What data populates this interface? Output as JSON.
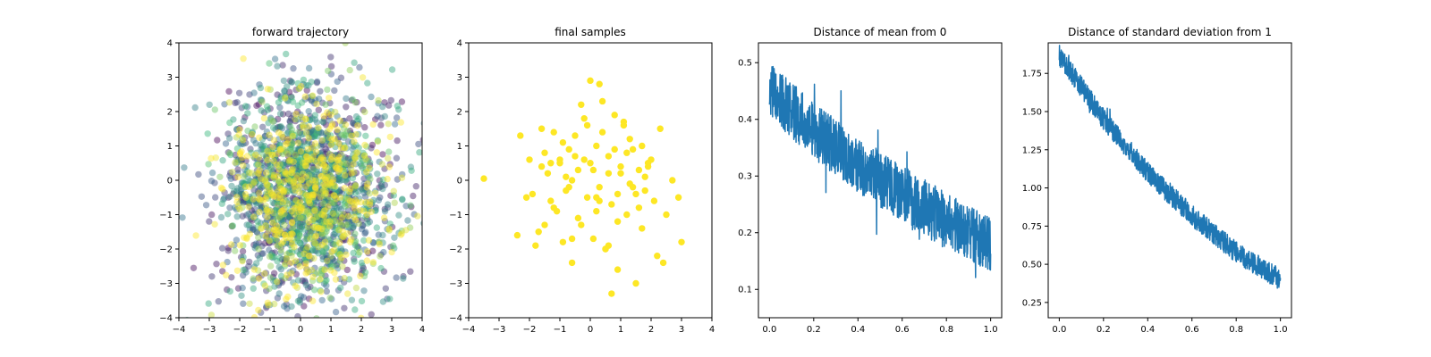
{
  "chart_data": [
    {
      "type": "scatter",
      "title": "forward trajectory",
      "xlim": [
        -4,
        4
      ],
      "ylim": [
        -4,
        4
      ],
      "xticks": [
        -4,
        -3,
        -2,
        -1,
        0,
        1,
        2,
        3,
        4
      ],
      "yticks": [
        -4,
        -3,
        -2,
        -1,
        0,
        1,
        2,
        3,
        4
      ],
      "xtick_labels": [
        "−4",
        "−3",
        "−2",
        "−1",
        "0",
        "1",
        "2",
        "3",
        "4"
      ],
      "ytick_labels": [
        "−4",
        "−3",
        "−2",
        "−1",
        "0",
        "1",
        "2",
        "3",
        "4"
      ],
      "grid": false,
      "colormap": "viridis",
      "point_alpha": 0.45,
      "points_color_by": "time (dark early, yellow late)",
      "center": [
        0.2,
        -0.4
      ],
      "spread": [
        1.3,
        1.4
      ],
      "point_count": 2200,
      "colors": {
        "early": "#440154",
        "mid1": "#31688e",
        "mid2": "#35b779",
        "late": "#fde725"
      }
    },
    {
      "type": "scatter",
      "title": "final samples",
      "xlim": [
        -4,
        4
      ],
      "ylim": [
        -4,
        4
      ],
      "xticks": [
        -4,
        -3,
        -2,
        -1,
        0,
        1,
        2,
        3,
        4
      ],
      "yticks": [
        -4,
        -3,
        -2,
        -1,
        0,
        1,
        2,
        3,
        4
      ],
      "xtick_labels": [
        "−4",
        "−3",
        "−2",
        "−1",
        "0",
        "1",
        "2",
        "3",
        "4"
      ],
      "ytick_labels": [
        "−4",
        "−3",
        "−2",
        "−1",
        "0",
        "1",
        "2",
        "3",
        "4"
      ],
      "grid": false,
      "color": "#fde725",
      "x": [
        -3.5,
        -2.3,
        -2.1,
        -2.0,
        -1.8,
        -1.6,
        -1.5,
        -1.4,
        -1.3,
        -1.2,
        -1.1,
        -1.0,
        -0.9,
        -0.8,
        -0.7,
        -0.6,
        -0.6,
        -0.5,
        -0.4,
        -0.3,
        -0.2,
        -0.1,
        0.0,
        0.1,
        0.1,
        0.2,
        0.3,
        0.4,
        0.5,
        0.6,
        0.7,
        0.8,
        0.9,
        1.0,
        1.1,
        1.2,
        1.3,
        1.4,
        1.5,
        1.6,
        1.7,
        1.8,
        1.9,
        2.0,
        2.2,
        2.3,
        2.5,
        2.7,
        2.9,
        3.0,
        -1.7,
        -1.5,
        -1.2,
        -0.9,
        -0.7,
        -0.5,
        -0.3,
        0.0,
        0.2,
        0.4,
        0.6,
        0.9,
        1.2,
        1.5,
        1.8,
        2.1,
        2.4,
        -2.4,
        -1.9,
        -1.6,
        -1.0,
        -0.6,
        -0.2,
        0.3,
        0.8,
        1.0,
        1.3,
        1.6,
        1.9,
        0.5,
        -0.1,
        0.7,
        1.1,
        0.2,
        -0.4,
        0.9,
        1.4,
        -0.8,
        0.3,
        0.6,
        -1.3,
        1.7
      ],
      "y": [
        0.05,
        1.3,
        -0.5,
        0.6,
        -1.9,
        1.5,
        -1.3,
        0.2,
        -0.6,
        1.4,
        -0.9,
        0.5,
        -1.8,
        -0.3,
        0.9,
        -2.4,
        0.0,
        1.3,
        -1.1,
        2.2,
        0.6,
        -0.5,
        2.9,
        -1.7,
        0.3,
        1.0,
        -0.2,
        1.4,
        -2.0,
        0.7,
        -0.7,
        1.9,
        -0.4,
        0.4,
        1.6,
        -1.0,
        -0.1,
        0.9,
        -3.0,
        0.3,
        1.0,
        -0.3,
        0.4,
        0.6,
        -2.2,
        1.5,
        -1.0,
        0.0,
        -0.5,
        -1.8,
        -1.5,
        0.8,
        -0.8,
        1.1,
        -0.2,
        0.7,
        -1.3,
        0.5,
        -0.9,
        2.3,
        0.2,
        -2.6,
        0.8,
        -0.4,
        0.1,
        -0.6,
        -2.4,
        -1.6,
        -0.4,
        0.4,
        0.6,
        -1.7,
        1.8,
        -0.6,
        0.9,
        0.2,
        1.2,
        -0.8,
        0.5,
        -2.0,
        1.6,
        -3.3,
        1.7,
        -0.5,
        0.3,
        -1.2,
        -0.2,
        0.1,
        2.8,
        -1.9,
        0.5,
        -1.4
      ]
    },
    {
      "type": "line",
      "title": "Distance of mean from 0",
      "xlim": [
        -0.05,
        1.05
      ],
      "ylim": [
        0.05,
        0.535
      ],
      "xticks": [
        0.0,
        0.2,
        0.4,
        0.6,
        0.8,
        1.0
      ],
      "yticks": [
        0.1,
        0.2,
        0.3,
        0.4,
        0.5
      ],
      "xtick_labels": [
        "0.0",
        "0.2",
        "0.4",
        "0.6",
        "0.8",
        "1.0"
      ],
      "ytick_labels": [
        "0.1",
        "0.2",
        "0.3",
        "0.4",
        "0.5"
      ],
      "grid": false,
      "color": "#1f77b4",
      "n_points": 1000,
      "trend": {
        "x": [
          0.0,
          0.2,
          0.4,
          0.6,
          0.8,
          1.0
        ],
        "y": [
          0.45,
          0.38,
          0.32,
          0.27,
          0.22,
          0.18
        ]
      },
      "noise_amplitude": 0.05
    },
    {
      "type": "line",
      "title": "Distance of standard deviation from 1",
      "xlim": [
        -0.05,
        1.05
      ],
      "ylim": [
        0.15,
        1.95
      ],
      "xticks": [
        0.0,
        0.2,
        0.4,
        0.6,
        0.8,
        1.0
      ],
      "yticks": [
        0.25,
        0.5,
        0.75,
        1.0,
        1.25,
        1.5,
        1.75
      ],
      "xtick_labels": [
        "0.0",
        "0.2",
        "0.4",
        "0.6",
        "0.8",
        "1.0"
      ],
      "ytick_labels": [
        "0.25",
        "0.50",
        "0.75",
        "1.00",
        "1.25",
        "1.50",
        "1.75"
      ],
      "grid": false,
      "color": "#1f77b4",
      "n_points": 1000,
      "trend": {
        "x": [
          0.0,
          0.2,
          0.4,
          0.6,
          0.8,
          1.0
        ],
        "y": [
          1.87,
          1.45,
          1.1,
          0.82,
          0.58,
          0.4
        ]
      },
      "noise_amplitude": 0.07
    }
  ]
}
